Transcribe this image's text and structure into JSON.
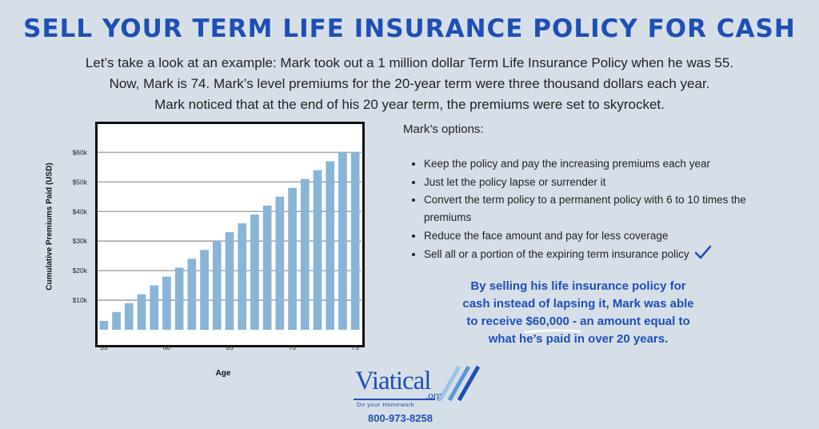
{
  "title": "SELL YOUR TERM LIFE INSURANCE POLICY FOR CASH",
  "intro": [
    "Let’s take a look at an example:  Mark took out a 1 million dollar Term Life Insurance Policy when he was 55.",
    "Now, Mark is 74.  Mark’s level premiums for the 20-year term were three thousand dollars each year.",
    "Mark noticed that at the end of his 20 year term, the premiums were set to skyrocket."
  ],
  "options_title": "Mark’s options:",
  "options": [
    "Keep the policy and pay the increasing premiums each year",
    "Just let the policy lapse or surrender it",
    "Convert the term policy to a permanent policy with 6 to 10 times the premiums",
    "Reduce the face amount and pay for less coverage",
    "Sell all or a portion of the expiring term insurance policy"
  ],
  "callout": {
    "line1": "By selling his life insurance policy for",
    "line2": "cash instead of lapsing it, Mark was able",
    "line3_pre": "to receive ",
    "line3_hl": "$60,000",
    "line3_post": " - an amount equal to",
    "line4": "what he’s paid in over 20 years."
  },
  "logo": {
    "word": "Viatical",
    "org": ".org",
    "tagline": "Do your Homework"
  },
  "phone": "800-973-8258",
  "colors": {
    "accent": "#1f4fb5",
    "bar": "#89b4d6",
    "background": "#d6dfe8"
  },
  "icons": {
    "check": "checkmark-icon"
  },
  "chart_data": {
    "type": "bar",
    "xlabel": "Age",
    "ylabel": "Cumulative Premiums Paid (USD)",
    "x": [
      55,
      56,
      57,
      58,
      59,
      60,
      61,
      62,
      63,
      64,
      65,
      66,
      67,
      68,
      69,
      70,
      71,
      72,
      73,
      74,
      75
    ],
    "values": [
      3000,
      6000,
      9000,
      12000,
      15000,
      18000,
      21000,
      24000,
      27000,
      30000,
      33000,
      36000,
      39000,
      42000,
      45000,
      48000,
      51000,
      54000,
      57000,
      60000,
      60000
    ],
    "xticks": [
      55,
      60,
      65,
      70,
      75
    ],
    "xtick_labels": [
      "55",
      "60",
      "65",
      "70",
      "75"
    ],
    "yticks": [
      10000,
      20000,
      30000,
      40000,
      50000,
      60000
    ],
    "ytick_labels": [
      "$10k",
      "$20k",
      "$30k",
      "$40k",
      "$50k",
      "$60k"
    ],
    "ylim": [
      0,
      62000
    ],
    "grid": true
  }
}
